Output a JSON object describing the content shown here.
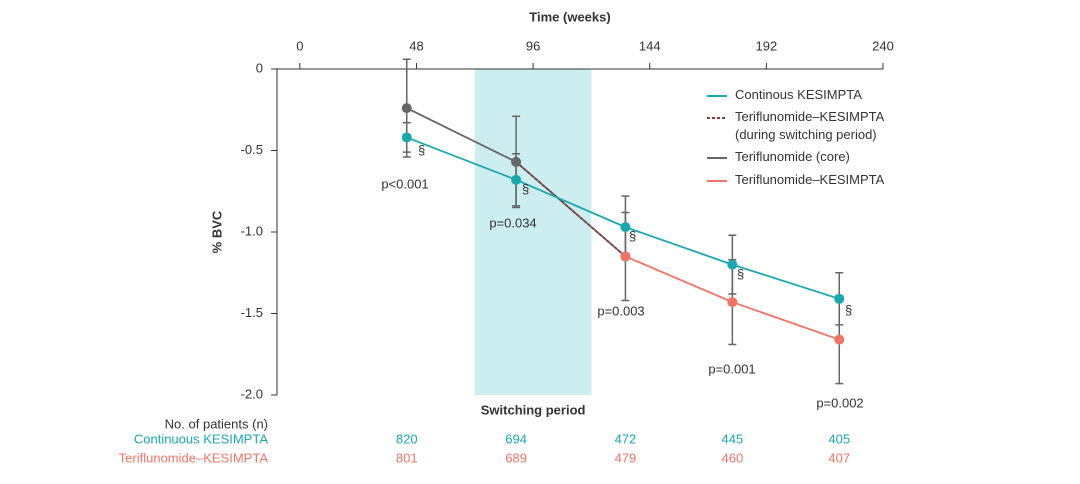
{
  "chart_data": {
    "type": "line",
    "xlabel": "Time (weeks)",
    "ylabel": "% BVC",
    "xlim": [
      -9.4,
      240
    ],
    "xticks": [
      0,
      48,
      96,
      144,
      192,
      240
    ],
    "ylim": [
      0,
      -2.0
    ],
    "yticks": [
      0,
      -0.5,
      {
        "value": -1.0,
        "label": "-1.0"
      },
      -1.5,
      {
        "value": -2.0,
        "label": "-2.0"
      }
    ],
    "shaded_region": {
      "xlim": [
        72,
        120
      ],
      "label": "Switching period",
      "color": "#cdeef0"
    },
    "series": [
      {
        "name": "Teriflunomide (core)",
        "color": "#666666",
        "x": [
          44,
          89,
          134
        ],
        "values": [
          -0.24,
          -0.57,
          -1.15
        ],
        "errors": [
          0.3,
          0.28,
          null
        ]
      },
      {
        "name": "Teriflunomide–KESIMPTA\n(during switching period)",
        "color": "#8b3a3a",
        "dashed": true,
        "x": [
          89,
          134
        ],
        "values": [
          -0.57,
          -1.15
        ]
      },
      {
        "name": "Continous KESIMPTA",
        "color": "#1aa8b0",
        "x": [
          44,
          89,
          134,
          178,
          222
        ],
        "values": [
          -0.42,
          -0.68,
          -0.97,
          -1.2,
          -1.41
        ],
        "errors": [
          0.09,
          0.16,
          0.19,
          0.18,
          0.16
        ]
      },
      {
        "name": "Teriflunomide–KESIMPTA",
        "color": "#f07466",
        "x": [
          134,
          178,
          222
        ],
        "values": [
          -1.15,
          -1.43,
          -1.66
        ],
        "errors": [
          0.27,
          0.26,
          0.27
        ]
      }
    ],
    "legend_order": [
      2,
      1,
      0,
      3
    ],
    "significance_symbol": "§",
    "p_values": [
      "p<0.001",
      "p=0.034",
      "p=0.003",
      "p=0.001",
      "p=0.002"
    ],
    "patients_table": {
      "title": "No. of patients (n)",
      "rows": [
        {
          "name": "Continuous KESIMPTA",
          "color": "#1aa8b0",
          "values": [
            820,
            694,
            472,
            445,
            405
          ]
        },
        {
          "name": "Teriflunomide–KESIMPTA",
          "color": "#f07466",
          "values": [
            801,
            689,
            479,
            460,
            407
          ]
        }
      ]
    }
  }
}
